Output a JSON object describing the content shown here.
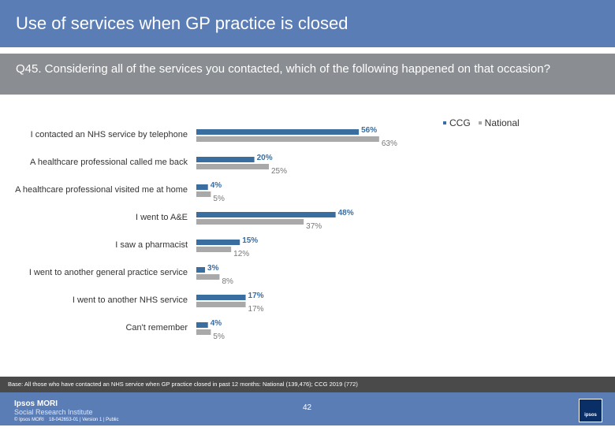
{
  "title": "Use of services when GP practice is closed",
  "question": "Q45. Considering all of the services you contacted, which of the following happened on that occasion?",
  "legend": [
    {
      "name": "CCG",
      "color": "#3a6da0"
    },
    {
      "name": "National",
      "color": "#a9a9a9"
    }
  ],
  "chart_data": {
    "type": "bar",
    "orientation": "horizontal",
    "categories": [
      "I contacted an NHS service by telephone",
      "A healthcare professional called me back",
      "A healthcare professional visited me at home",
      "I went to A&E",
      "I saw a pharmacist",
      "I went to another general practice service",
      "I  went to another NHS service",
      "Can't remember"
    ],
    "series": [
      {
        "name": "CCG",
        "color": "#3a6da0",
        "values": [
          56,
          20,
          4,
          48,
          15,
          3,
          17,
          4
        ],
        "labels": [
          "56%",
          "20%",
          "4%",
          "48%",
          "15%",
          "3%",
          "17%",
          "4%"
        ]
      },
      {
        "name": "National",
        "color": "#a9a9a9",
        "values": [
          63,
          25,
          5,
          37,
          12,
          8,
          17,
          5
        ],
        "labels": [
          "63%",
          "25%",
          "5%",
          "37%",
          "12%",
          "8%",
          "17%",
          "5%"
        ]
      }
    ],
    "xlim": [
      0,
      100
    ],
    "grid": false,
    "legend_position": "top-right"
  },
  "base": "Base: All those who have contacted an NHS service when GP practice closed in past 12 months: National (139,476); CCG 2019 (772)",
  "footer": {
    "brand_line1": "Ipsos MORI",
    "brand_line2": "Social Research Institute",
    "copyright": "© Ipsos MORI",
    "job_ref": "18-042653-01 | Version 1 | Public",
    "page_number": "42",
    "logo_text": "ipsos"
  }
}
